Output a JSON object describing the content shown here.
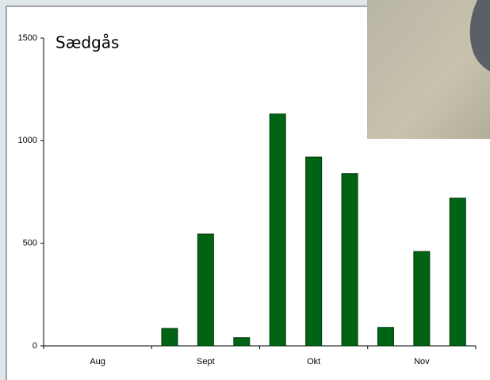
{
  "chart_data": {
    "type": "bar",
    "title": "Sædgås",
    "categories": [
      null,
      "Aug",
      null,
      null,
      "Sept",
      null,
      null,
      "Okt",
      null,
      null,
      "Nov",
      null
    ],
    "values": [
      0,
      0,
      0,
      85,
      545,
      40,
      1130,
      920,
      840,
      90,
      460,
      720
    ],
    "color": "#006414",
    "ylim": [
      0,
      1500
    ],
    "yticks": [
      0,
      500,
      1000,
      1500
    ],
    "grid": false
  }
}
